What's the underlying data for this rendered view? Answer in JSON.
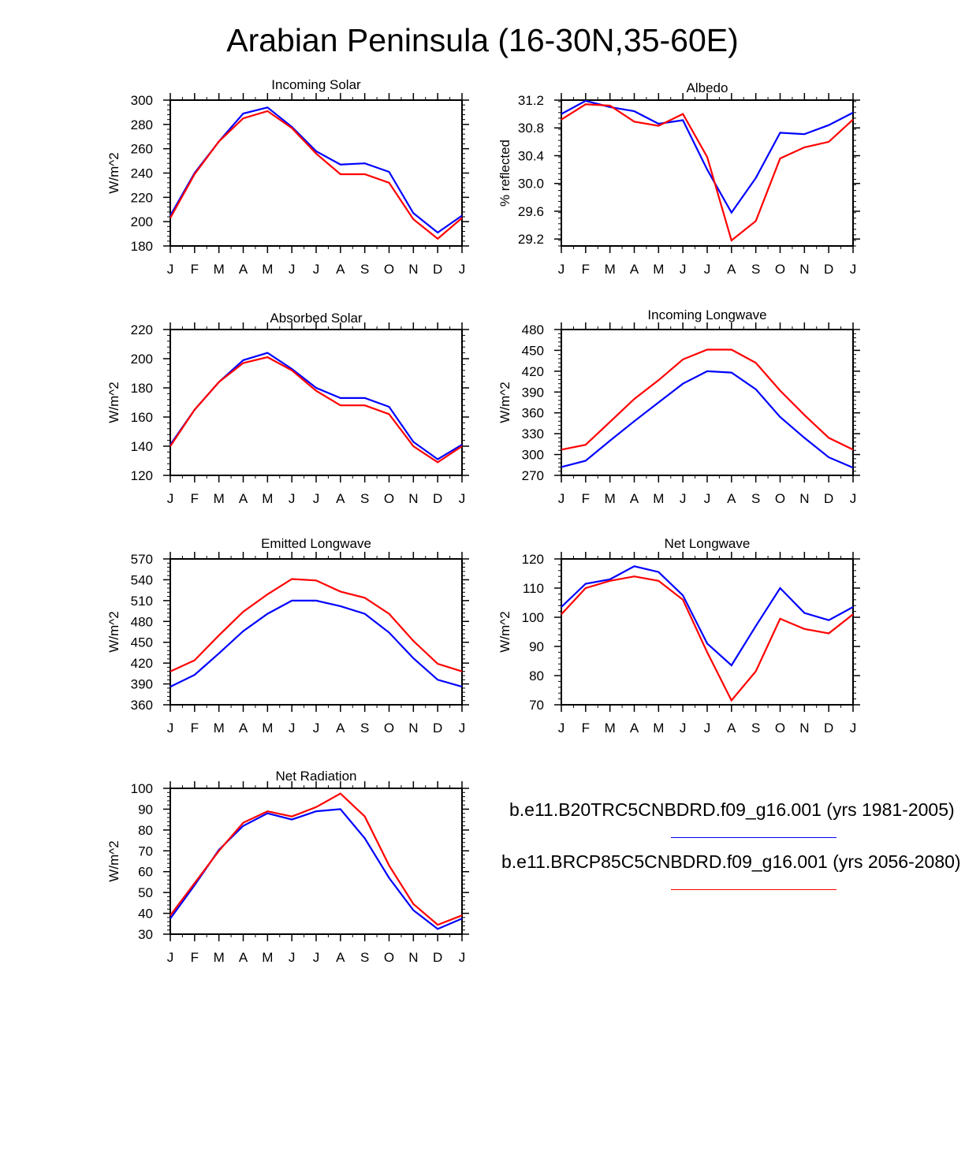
{
  "title": "Arabian Peninsula (16-30N,35-60E)",
  "legend": [
    {
      "label": "b.e11.B20TRC5CNBDRD.f09_g16.001 (yrs 1981-2005)",
      "color": "#0000ff"
    },
    {
      "label": "b.e11.BRCP85C5CNBDRD.f09_g16.001 (yrs 2056-2080)",
      "color": "#ff0000"
    }
  ],
  "chart_data": [
    {
      "type": "line",
      "title": "Incoming Solar",
      "ylabel": "W/m^2",
      "ylim": [
        180,
        300
      ],
      "yticks": [
        "180",
        "200",
        "220",
        "240",
        "260",
        "280",
        "300"
      ],
      "categories": [
        "J",
        "F",
        "M",
        "A",
        "M",
        "J",
        "J",
        "A",
        "S",
        "O",
        "N",
        "D",
        "J"
      ],
      "series": [
        {
          "name": "b.e11.B20TRC5CNBDRD.f09_g16.001 (yrs 1981-2005)",
          "color": "#0000ff",
          "values": [
            205,
            240,
            266,
            289,
            294,
            278,
            258,
            247,
            248,
            241,
            207,
            191,
            205
          ]
        },
        {
          "name": "b.e11.BRCP85C5CNBDRD.f09_g16.001 (yrs 2056-2080)",
          "color": "#ff0000",
          "values": [
            203,
            239,
            266,
            285,
            291,
            277,
            256,
            239,
            239,
            232,
            202,
            186,
            203
          ]
        }
      ]
    },
    {
      "type": "line",
      "title": "Albedo",
      "ylabel": "% reflected",
      "ylim": [
        29.1,
        31.2
      ],
      "yticks": [
        "29.2",
        "29.6",
        "30.0",
        "30.4",
        "30.8",
        "31.2"
      ],
      "categories": [
        "J",
        "F",
        "M",
        "A",
        "M",
        "J",
        "J",
        "A",
        "S",
        "O",
        "N",
        "D",
        "J"
      ],
      "series": [
        {
          "name": "b.e11.B20TRC5CNBDRD.f09_g16.001 (yrs 1981-2005)",
          "color": "#0000ff",
          "values": [
            31.0,
            31.19,
            31.1,
            31.04,
            30.86,
            30.91,
            30.2,
            29.58,
            30.08,
            30.73,
            30.71,
            30.84,
            31.02
          ]
        },
        {
          "name": "b.e11.BRCP85C5CNBDRD.f09_g16.001 (yrs 2056-2080)",
          "color": "#ff0000",
          "values": [
            30.92,
            31.14,
            31.12,
            30.89,
            30.83,
            31.0,
            30.38,
            29.18,
            29.46,
            30.36,
            30.52,
            30.6,
            30.92
          ]
        }
      ]
    },
    {
      "type": "line",
      "title": "Absorbed Solar",
      "ylabel": "W/m^2",
      "ylim": [
        120,
        220
      ],
      "yticks": [
        "120",
        "140",
        "160",
        "180",
        "200",
        "220"
      ],
      "categories": [
        "J",
        "F",
        "M",
        "A",
        "M",
        "J",
        "J",
        "A",
        "S",
        "O",
        "N",
        "D",
        "J"
      ],
      "series": [
        {
          "name": "b.e11.B20TRC5CNBDRD.f09_g16.001 (yrs 1981-2005)",
          "color": "#0000ff",
          "values": [
            141,
            165,
            184,
            199,
            204,
            193,
            180,
            173,
            173,
            167,
            143,
            131,
            141
          ]
        },
        {
          "name": "b.e11.BRCP85C5CNBDRD.f09_g16.001 (yrs 2056-2080)",
          "color": "#ff0000",
          "values": [
            140,
            165,
            184,
            197,
            201,
            192,
            178,
            168,
            168,
            162,
            140,
            129,
            140
          ]
        }
      ]
    },
    {
      "type": "line",
      "title": "Incoming Longwave",
      "ylabel": "W/m^2",
      "ylim": [
        270,
        480
      ],
      "yticks": [
        "270",
        "300",
        "330",
        "360",
        "390",
        "420",
        "450",
        "480"
      ],
      "categories": [
        "J",
        "F",
        "M",
        "A",
        "M",
        "J",
        "J",
        "A",
        "S",
        "O",
        "N",
        "D",
        "J"
      ],
      "series": [
        {
          "name": "b.e11.B20TRC5CNBDRD.f09_g16.001 (yrs 1981-2005)",
          "color": "#0000ff",
          "values": [
            282,
            291,
            320,
            348,
            375,
            402,
            420,
            418,
            394,
            354,
            324,
            296,
            281
          ]
        },
        {
          "name": "b.e11.BRCP85C5CNBDRD.f09_g16.001 (yrs 2056-2080)",
          "color": "#ff0000",
          "values": [
            307,
            314,
            347,
            380,
            407,
            437,
            451,
            451,
            432,
            392,
            357,
            324,
            307
          ]
        }
      ]
    },
    {
      "type": "line",
      "title": "Emitted Longwave",
      "ylabel": "W/m^2",
      "ylim": [
        360,
        570
      ],
      "yticks": [
        "360",
        "390",
        "420",
        "450",
        "480",
        "510",
        "540",
        "570"
      ],
      "categories": [
        "J",
        "F",
        "M",
        "A",
        "M",
        "J",
        "J",
        "A",
        "S",
        "O",
        "N",
        "D",
        "J"
      ],
      "series": [
        {
          "name": "b.e11.B20TRC5CNBDRD.f09_g16.001 (yrs 1981-2005)",
          "color": "#0000ff",
          "values": [
            386,
            403,
            434,
            466,
            491,
            510,
            510,
            502,
            491,
            464,
            427,
            396,
            386
          ]
        },
        {
          "name": "b.e11.BRCP85C5CNBDRD.f09_g16.001 (yrs 2056-2080)",
          "color": "#ff0000",
          "values": [
            408,
            424,
            460,
            494,
            519,
            541,
            539,
            523,
            514,
            491,
            452,
            419,
            408
          ]
        }
      ]
    },
    {
      "type": "line",
      "title": "Net Longwave",
      "ylabel": "W/m^2",
      "ylim": [
        70,
        120
      ],
      "yticks": [
        "70",
        "80",
        "90",
        "100",
        "110",
        "120"
      ],
      "categories": [
        "J",
        "F",
        "M",
        "A",
        "M",
        "J",
        "J",
        "A",
        "S",
        "O",
        "N",
        "D",
        "J"
      ],
      "series": [
        {
          "name": "b.e11.B20TRC5CNBDRD.f09_g16.001 (yrs 1981-2005)",
          "color": "#0000ff",
          "values": [
            103.5,
            111.5,
            113,
            117.5,
            115.5,
            107.5,
            91,
            83.5,
            97,
            110,
            101.5,
            99,
            103.5
          ]
        },
        {
          "name": "b.e11.BRCP85C5CNBDRD.f09_g16.001 (yrs 2056-2080)",
          "color": "#ff0000",
          "values": [
            101,
            110,
            112.5,
            114,
            112.5,
            106,
            88,
            71.5,
            81.5,
            99.5,
            96,
            94.5,
            101
          ]
        }
      ]
    },
    {
      "type": "line",
      "title": "Net Radiation",
      "ylabel": "W/m^2",
      "ylim": [
        30,
        100
      ],
      "yticks": [
        "30",
        "40",
        "50",
        "60",
        "70",
        "80",
        "90",
        "100"
      ],
      "categories": [
        "J",
        "F",
        "M",
        "A",
        "M",
        "J",
        "J",
        "A",
        "S",
        "O",
        "N",
        "D",
        "J"
      ],
      "series": [
        {
          "name": "b.e11.B20TRC5CNBDRD.f09_g16.001 (yrs 1981-2005)",
          "color": "#0000ff",
          "values": [
            37.5,
            53.5,
            70.5,
            82,
            88,
            85,
            89,
            90,
            76,
            57,
            41.5,
            32.5,
            37.5
          ]
        },
        {
          "name": "b.e11.BRCP85C5CNBDRD.f09_g16.001 (yrs 2056-2080)",
          "color": "#ff0000",
          "values": [
            39,
            54.5,
            70,
            83.5,
            89,
            86.5,
            91,
            97.5,
            86.5,
            63,
            44.5,
            34.5,
            39
          ]
        }
      ]
    }
  ]
}
